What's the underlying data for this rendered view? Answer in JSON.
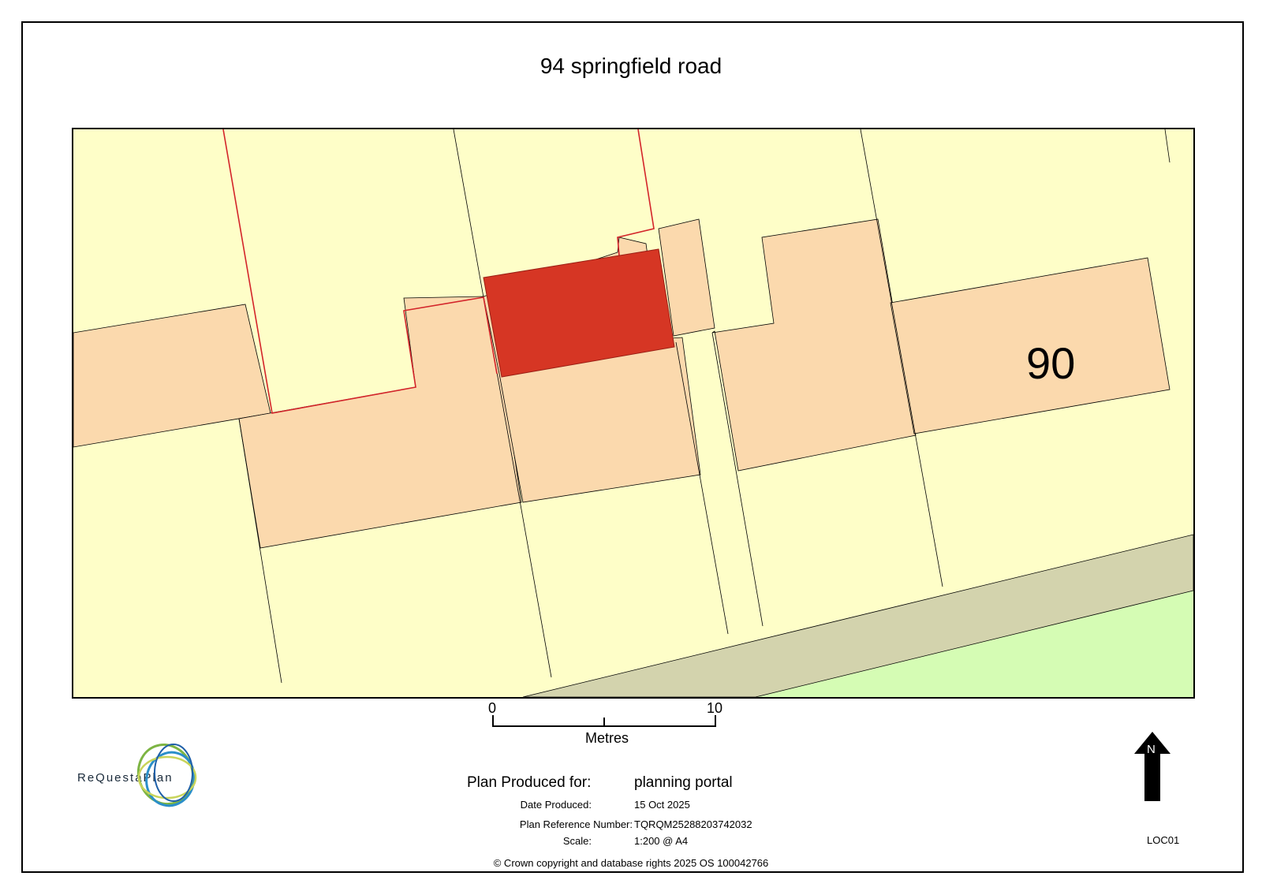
{
  "title": "94 springfield road",
  "map": {
    "house_label": "90",
    "colors": {
      "garden": "#fefec8",
      "building": "#fbd9ad",
      "site": "#d63624",
      "boundary": "#d3242a",
      "road": "#d3d3ad",
      "park": "#d5fcb4",
      "line": "#000000"
    }
  },
  "scale_bar": {
    "start_label": "0",
    "end_label": "10",
    "unit": "Metres"
  },
  "logo": {
    "text": "ReQuestaPlan",
    "colors": [
      "#7db443",
      "#2b8fc9",
      "#c8d45a",
      "#1e5fa8"
    ]
  },
  "info": {
    "produced_for_label": "Plan Produced for:",
    "produced_for_value": "planning portal",
    "date_label": "Date Produced:",
    "date_value": "15 Oct 2025",
    "reference_label": "Plan Reference Number:",
    "reference_value": "TQRQM25288203742032",
    "scale_label": "Scale:",
    "scale_value": "1:200 @ A4"
  },
  "north_label": "N",
  "loc_code": "LOC01",
  "copyright": "© Crown copyright and database rights 2025 OS 100042766"
}
